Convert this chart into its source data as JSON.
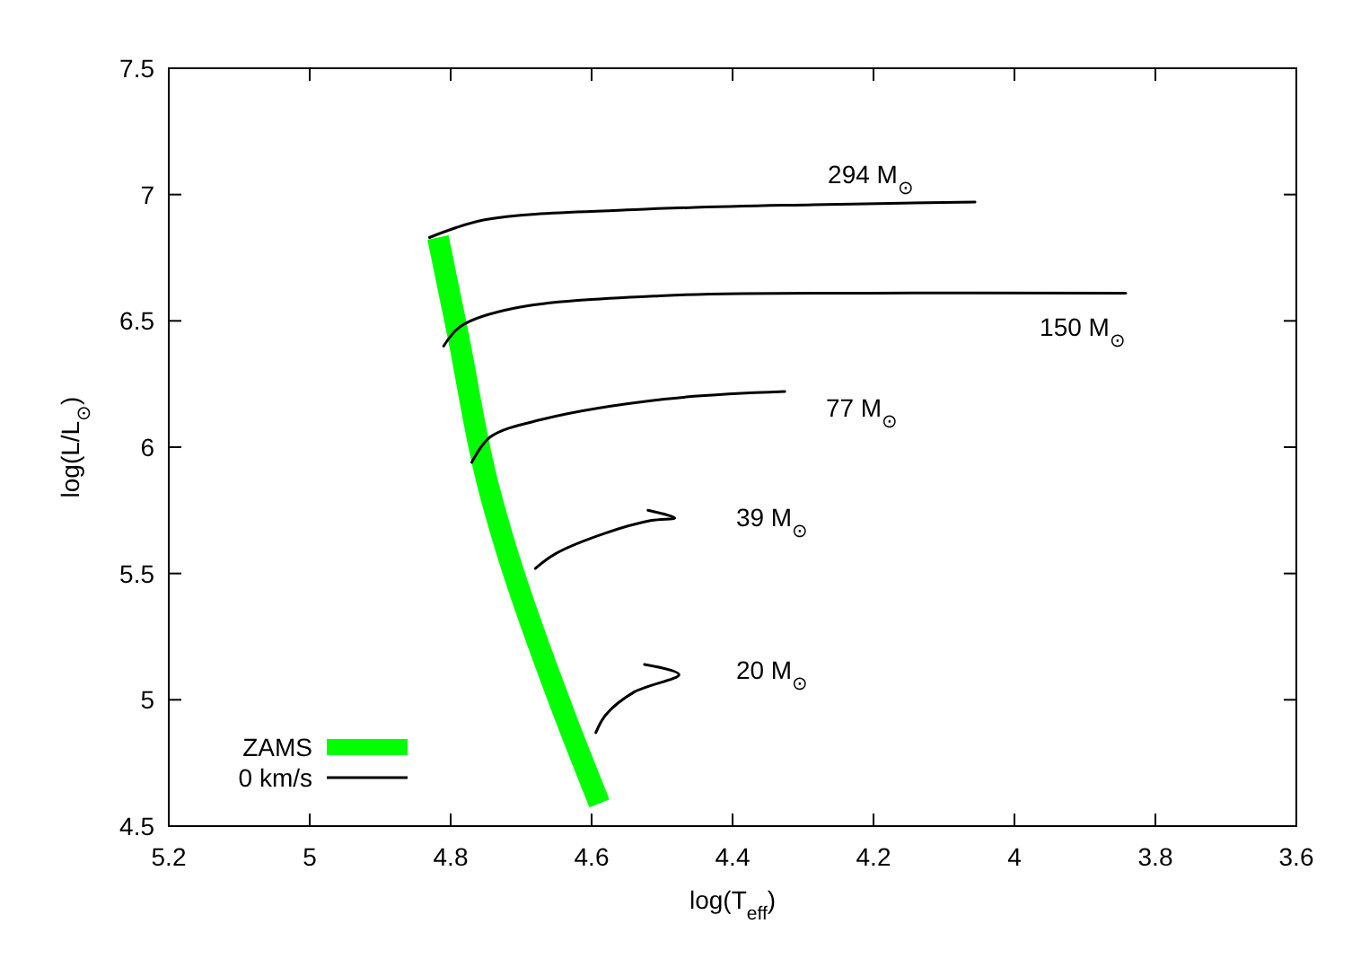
{
  "chart_data": {
    "type": "line",
    "xlabel": "log(T$_{eff}$)",
    "ylabel": "log(L/L$_{⊙}$)",
    "xlim": [
      5.2,
      3.6
    ],
    "xticks": [
      5.2,
      5,
      4.8,
      4.6,
      4.4,
      4.2,
      4,
      3.8,
      3.6
    ],
    "ylim": [
      4.5,
      7.5
    ],
    "yticks": [
      4.5,
      5,
      5.5,
      6,
      6.5,
      7,
      7.5
    ],
    "grid": false,
    "legend": "bottom left",
    "line_style": "solid",
    "marker": "none",
    "series": [
      {
        "name": "ZAMS",
        "color": "#00ff00",
        "x": [
          4.818,
          4.79,
          4.747,
          4.726,
          4.637,
          4.589
        ],
        "values": [
          6.83,
          6.45,
          5.85,
          5.64,
          4.93,
          4.59
        ]
      },
      {
        "name": "0 km/s",
        "color": "#000000",
        "x": [
          4.83,
          4.752,
          4.54,
          4.285,
          4.056
        ],
        "values": [
          6.83,
          6.9,
          6.94,
          6.96,
          6.97
        ]
      },
      {
        "color": "#000000",
        "x": [
          4.81,
          4.785,
          4.71,
          4.497,
          4.2,
          3.842
        ],
        "values": [
          6.4,
          6.48,
          6.55,
          6.6,
          6.61,
          6.61
        ]
      },
      {
        "color": "#000000",
        "x": [
          4.77,
          4.744,
          4.67,
          4.497,
          4.326
        ],
        "values": [
          5.94,
          6.04,
          6.11,
          6.19,
          6.22
        ]
      },
      {
        "color": "#000000",
        "x": [
          4.68,
          4.65,
          4.58,
          4.515,
          4.482,
          4.52
        ],
        "values": [
          5.52,
          5.58,
          5.66,
          5.71,
          5.72,
          5.75
        ]
      },
      {
        "color": "#000000",
        "x": [
          4.594,
          4.58,
          4.54,
          4.476,
          4.525
        ],
        "values": [
          4.87,
          4.94,
          5.03,
          5.1,
          5.14
        ]
      }
    ],
    "annotations": [
      "294 M$_{⊙}$",
      "150 M$_{⊙}$",
      "77 M$_{⊙}$",
      "39 M$_{⊙}$",
      "20 M$_{⊙}$"
    ]
  }
}
